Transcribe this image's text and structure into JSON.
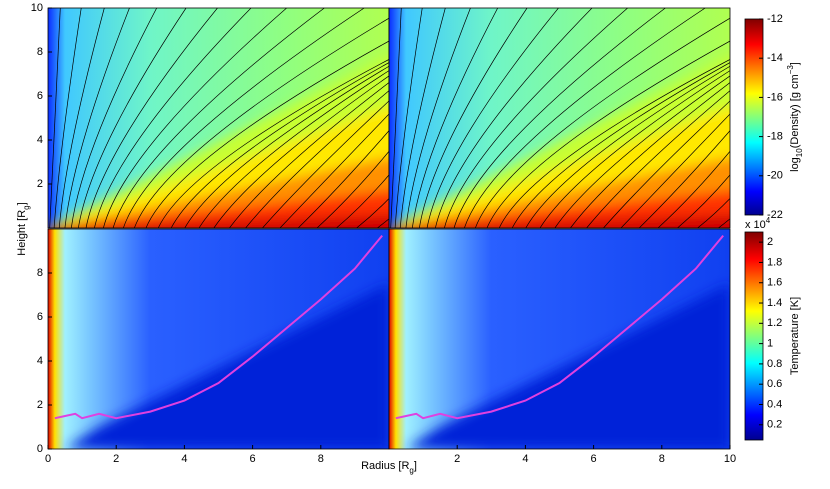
{
  "chart_data": {
    "type": "heatmap-grid",
    "xlabel": [
      {
        "text": "Radius [R"
      },
      {
        "sub": "g"
      },
      {
        "text": "]"
      }
    ],
    "ylabel": [
      {
        "text": "Height [R"
      },
      {
        "sub": "g"
      },
      {
        "text": "]"
      }
    ],
    "panels": [
      {
        "xlim": [
          0,
          10
        ],
        "ylim": [
          0,
          10
        ],
        "xticks": [],
        "yticks": [
          2,
          4,
          6,
          8,
          10
        ]
      },
      {
        "xlim": [
          0,
          10
        ],
        "ylim": [
          0,
          10
        ],
        "xticks": [],
        "yticks": []
      },
      {
        "xlim": [
          0,
          10
        ],
        "ylim": [
          0,
          10
        ],
        "xticks": [
          0,
          2,
          4,
          6,
          8
        ],
        "yticks": [
          0,
          2,
          4,
          6,
          8
        ]
      },
      {
        "xlim": [
          0,
          10
        ],
        "ylim": [
          0,
          10
        ],
        "xticks": [
          2,
          4,
          6,
          8,
          10
        ],
        "yticks": []
      }
    ],
    "colorbars": [
      {
        "label": [
          {
            "text": "log"
          },
          {
            "sub": "10"
          },
          {
            "text": "(Density) [g cm"
          },
          {
            "sup": "−3"
          },
          {
            "text": "]"
          }
        ],
        "clim": [
          -22,
          -12
        ],
        "ticks": [
          -22,
          -20,
          -18,
          -16,
          -14,
          -12
        ]
      },
      {
        "label": [
          {
            "text": "Temperature [K]"
          }
        ],
        "multiplier": [
          {
            "text": "x 10"
          },
          {
            "sup": "4"
          }
        ],
        "clim": [
          0.05,
          2.1
        ],
        "ticks": [
          0.2,
          0.4,
          0.6,
          0.8,
          1,
          1.2,
          1.4,
          1.6,
          1.8,
          2
        ]
      }
    ]
  }
}
